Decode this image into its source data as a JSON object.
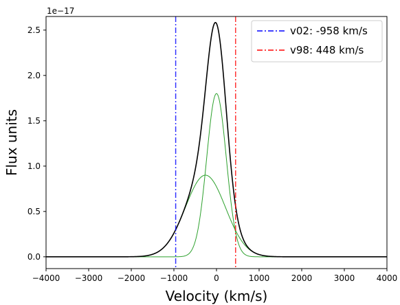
{
  "chart_data": {
    "type": "line",
    "xlabel": "Velocity (km/s)",
    "ylabel": "Flux units",
    "y_offset_label": "1e−17",
    "xlim": [
      -4000,
      4000
    ],
    "ylim": [
      -0.13,
      2.65
    ],
    "x_ticks": [
      -4000,
      -3000,
      -2000,
      -1000,
      0,
      1000,
      2000,
      3000,
      4000
    ],
    "x_tick_labels": [
      "−4000",
      "−3000",
      "−2000",
      "−1000",
      "0",
      "1000",
      "2000",
      "3000",
      "4000"
    ],
    "y_ticks": [
      0,
      0.5,
      1.0,
      1.5,
      2.0,
      2.5
    ],
    "y_tick_labels": [
      "0.0",
      "0.5",
      "1.0",
      "1.5",
      "2.0",
      "2.5"
    ],
    "components": [
      {
        "center": 0,
        "amplitude": 1.8,
        "sigma": 230,
        "color": "#2ca02c"
      },
      {
        "center": -260,
        "amplitude": 0.9,
        "sigma": 470,
        "color": "#2ca02c"
      }
    ],
    "total": {
      "color": "#000000",
      "description": "sum of components"
    },
    "vlines": [
      {
        "name": "v02: -958 km/s",
        "x": -958,
        "color": "#0000ff",
        "style": "dashdot"
      },
      {
        "name": "v98: 448 km/s",
        "x": 448,
        "color": "#ff0000",
        "style": "dashdot"
      }
    ],
    "legend": {
      "placement": "top-right"
    },
    "grid": false
  }
}
